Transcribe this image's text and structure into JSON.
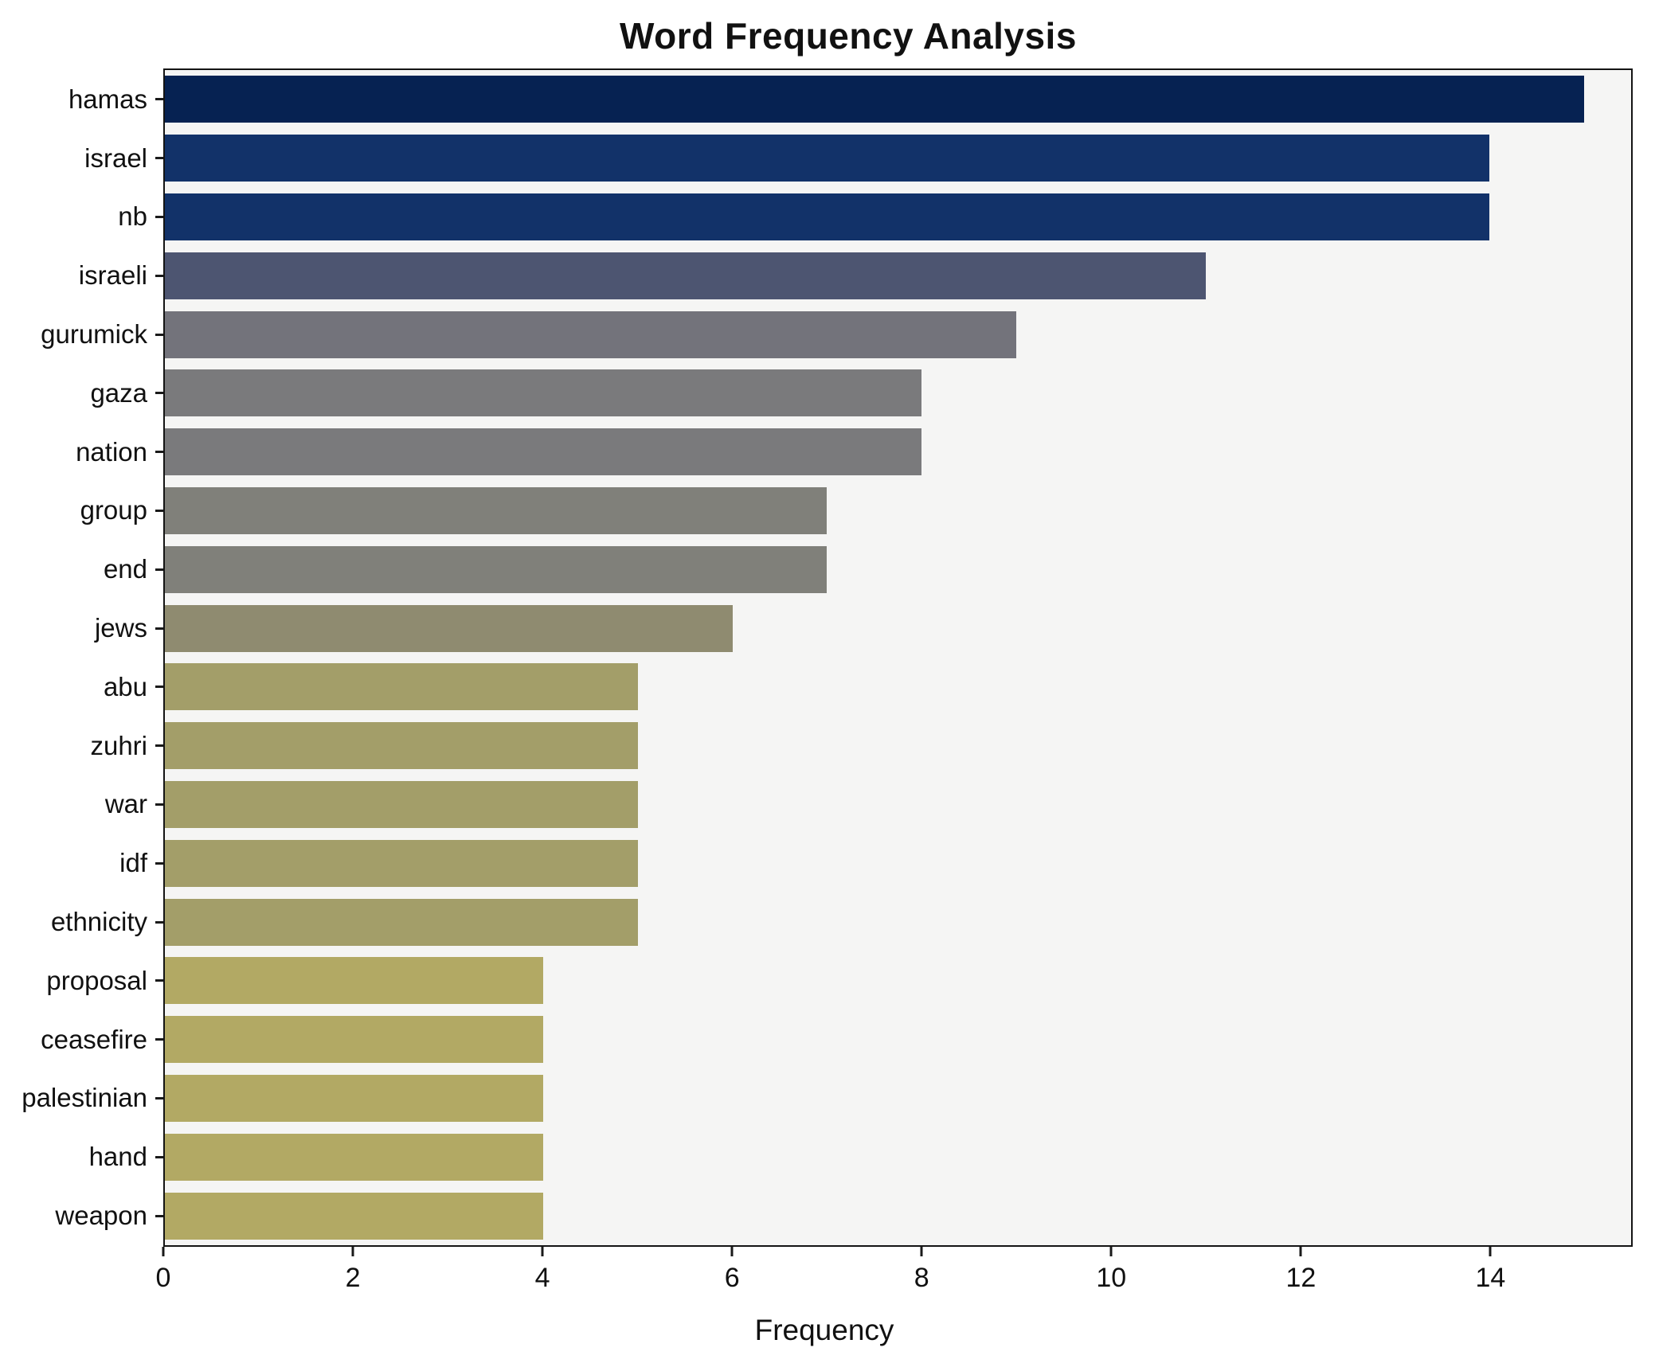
{
  "chart_data": {
    "type": "bar",
    "orientation": "horizontal",
    "title": "Word Frequency Analysis",
    "xlabel": "Frequency",
    "ylabel": "",
    "categories": [
      "hamas",
      "israel",
      "nb",
      "israeli",
      "gurumick",
      "gaza",
      "nation",
      "group",
      "end",
      "jews",
      "abu",
      "zuhri",
      "war",
      "idf",
      "ethnicity",
      "proposal",
      "ceasefire",
      "palestinian",
      "hand",
      "weapon"
    ],
    "values": [
      15,
      14,
      14,
      11,
      9,
      8,
      8,
      7,
      7,
      6,
      5,
      5,
      5,
      5,
      5,
      4,
      4,
      4,
      4,
      4
    ],
    "colors": [
      "#062252",
      "#123269",
      "#123269",
      "#4d5571",
      "#73737b",
      "#7a7a7c",
      "#7a7a7c",
      "#80807a",
      "#80807a",
      "#8f8b70",
      "#a39e69",
      "#a39e69",
      "#a39e69",
      "#a39e69",
      "#a39e69",
      "#b2a964",
      "#b2a964",
      "#b2a964",
      "#b2a964",
      "#b2a964"
    ],
    "xlim": [
      0,
      15.5
    ],
    "xticks": [
      0,
      2,
      4,
      6,
      8,
      10,
      12,
      14
    ],
    "grid": false,
    "legend": "none",
    "plot_background": "#f5f5f4"
  }
}
